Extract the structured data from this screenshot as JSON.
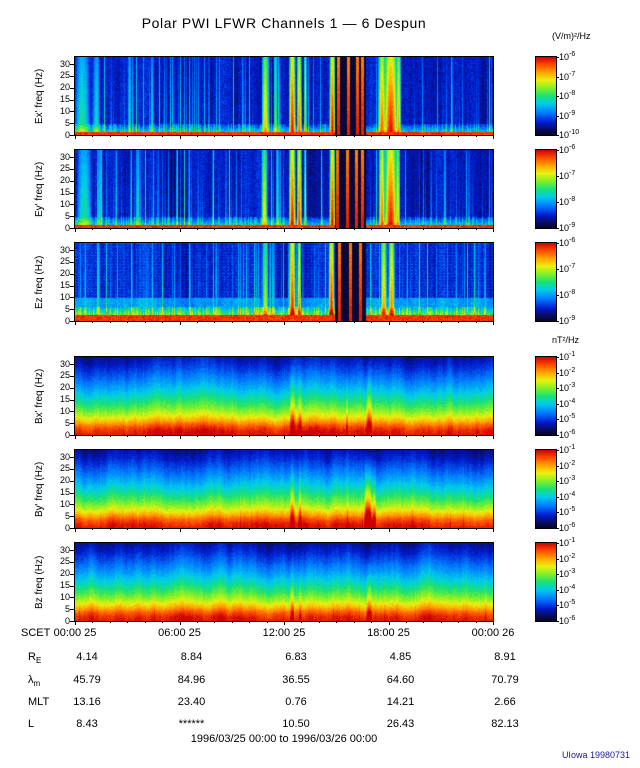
{
  "title": "Polar PWI LFWR Channels 1 — 6 Despun",
  "units_top": "(V/m)²/Hz",
  "units_bottom": "nT²/Hz",
  "footer": "1996/03/25 00:00 to 1996/03/26 00:00",
  "credit": "UIowa 19980731",
  "time_axis": {
    "prefix": "SCET",
    "tick_hours": [
      0,
      6,
      12,
      18,
      24
    ],
    "tick_labels": [
      "00:00 25",
      "06:00 25",
      "12:00 25",
      "18:00 25",
      "00:00 26"
    ]
  },
  "param_rows": [
    {
      "label": "R",
      "sub": "E",
      "values": [
        "4.14",
        "8.84",
        "6.83",
        "4.85",
        "8.91"
      ]
    },
    {
      "label": "λ",
      "sub": "m",
      "values": [
        "45.79",
        "84.96",
        "36.55",
        "64.60",
        "70.79"
      ]
    },
    {
      "label": "MLT",
      "sub": "",
      "values": [
        "13.16",
        "23.40",
        "0.76",
        "14.21",
        "2.66"
      ]
    },
    {
      "label": "L",
      "sub": "",
      "values": [
        "8.43",
        "******",
        "10.50",
        "26.43",
        "82.13"
      ]
    }
  ],
  "chart_data": {
    "type": "heatmap",
    "title": "Polar PWI LFWR Channels 1 — 6 Despun",
    "x": {
      "label": "SCET",
      "start": "1996/03/25 00:00",
      "end": "1996/03/26 00:00",
      "range_hours": [
        0,
        24
      ],
      "tick_labels": [
        "00:00 25",
        "06:00 25",
        "12:00 25",
        "18:00 25",
        "00:00 26"
      ]
    },
    "y": {
      "label": "freq (Hz)",
      "range": [
        0,
        30
      ],
      "ticks": [
        0,
        5,
        10,
        15,
        20,
        25,
        30
      ]
    },
    "colorbar_base": "10",
    "legend_position": "right",
    "panels": [
      {
        "id": "Ex",
        "ylabel": "Ex' freq (Hz)",
        "units": "(V/m)²/Hz",
        "kind": "E",
        "seed": 11,
        "colorbar_exponents": [
          "-6",
          "-7",
          "-8",
          "-9",
          "-10"
        ],
        "events": [
          {
            "t": 0.4,
            "w": 0.5,
            "s": 0.5
          },
          {
            "t": 1.2,
            "w": 0.25,
            "s": 0.45
          },
          {
            "t": 3.1,
            "w": 0.1,
            "s": 0.5
          },
          {
            "t": 4.4,
            "w": 0.12,
            "s": 0.45
          },
          {
            "t": 10.9,
            "w": 0.22,
            "s": 0.8
          },
          {
            "t": 11.5,
            "w": 0.12,
            "s": 0.6
          },
          {
            "t": 12.45,
            "w": 0.2,
            "s": 1.0
          },
          {
            "t": 12.85,
            "w": 0.15,
            "s": 0.9
          },
          {
            "t": 13.2,
            "w": 0.08,
            "s": 0.85
          },
          {
            "t": 14.75,
            "w": 0.18,
            "s": 1.0
          },
          {
            "t": 17.6,
            "w": 0.25,
            "s": 0.9
          },
          {
            "t": 18.1,
            "w": 0.45,
            "s": 1.0
          },
          {
            "t": 18.55,
            "w": 0.15,
            "s": 0.85
          },
          {
            "t": 21.6,
            "w": 0.08,
            "s": 0.45
          }
        ],
        "gap": {
          "t0": 14.95,
          "t1": 16.6,
          "spikes": [
            15.1,
            15.65,
            16.2,
            16.5
          ]
        }
      },
      {
        "id": "Ey",
        "ylabel": "Ey' freq (Hz)",
        "units": "(V/m)²/Hz",
        "kind": "E",
        "seed": 23,
        "colorbar_exponents": [
          "-6",
          "-7",
          "-8",
          "-9"
        ],
        "events": [
          {
            "t": 0.5,
            "w": 0.5,
            "s": 0.5
          },
          {
            "t": 1.4,
            "w": 0.2,
            "s": 0.45
          },
          {
            "t": 3.6,
            "w": 0.1,
            "s": 0.5
          },
          {
            "t": 10.85,
            "w": 0.2,
            "s": 0.75
          },
          {
            "t": 11.6,
            "w": 0.1,
            "s": 0.55
          },
          {
            "t": 12.45,
            "w": 0.2,
            "s": 1.0
          },
          {
            "t": 12.85,
            "w": 0.15,
            "s": 0.95
          },
          {
            "t": 13.2,
            "w": 0.07,
            "s": 0.8
          },
          {
            "t": 14.75,
            "w": 0.18,
            "s": 1.0
          },
          {
            "t": 17.6,
            "w": 0.2,
            "s": 0.9
          },
          {
            "t": 18.1,
            "w": 0.4,
            "s": 1.0
          },
          {
            "t": 18.5,
            "w": 0.15,
            "s": 0.8
          },
          {
            "t": 21.2,
            "w": 0.08,
            "s": 0.4
          }
        ],
        "gap": {
          "t0": 14.95,
          "t1": 16.6,
          "spikes": [
            15.05,
            15.6,
            16.15,
            16.45
          ]
        }
      },
      {
        "id": "Ez",
        "ylabel": "Ez freq (Hz)",
        "units": "(V/m)²/Hz",
        "kind": "E3",
        "seed": 37,
        "colorbar_exponents": [
          "-6",
          "-7",
          "-8",
          "-9"
        ],
        "events": [
          {
            "t": 10.9,
            "w": 0.2,
            "s": 0.7
          },
          {
            "t": 12.45,
            "w": 0.2,
            "s": 1.0
          },
          {
            "t": 12.85,
            "w": 0.12,
            "s": 0.9
          },
          {
            "t": 14.7,
            "w": 0.18,
            "s": 1.0
          },
          {
            "t": 17.7,
            "w": 0.2,
            "s": 0.85
          },
          {
            "t": 18.15,
            "w": 0.2,
            "s": 0.9
          }
        ],
        "gap": {
          "t0": 14.95,
          "t1": 16.6,
          "spikes": [
            15.15,
            15.8,
            16.35
          ]
        }
      },
      {
        "id": "Bx",
        "ylabel": "Bx' freq (Hz)",
        "units": "nT²/Hz",
        "kind": "B",
        "seed": 41,
        "colorbar_exponents": [
          "-1",
          "-2",
          "-3",
          "-4",
          "-5",
          "-6"
        ],
        "events": [
          {
            "t": 12.45,
            "w": 0.15,
            "s": 0.45
          },
          {
            "t": 12.9,
            "w": 0.1,
            "s": 0.35
          },
          {
            "t": 15.6,
            "w": 0.07,
            "s": 0.3
          },
          {
            "t": 16.85,
            "w": 0.18,
            "s": 0.5
          }
        ]
      },
      {
        "id": "By",
        "ylabel": "By' freq (Hz)",
        "units": "nT²/Hz",
        "kind": "B",
        "seed": 53,
        "colorbar_exponents": [
          "-1",
          "-2",
          "-3",
          "-4",
          "-5",
          "-6"
        ],
        "events": [
          {
            "t": 12.45,
            "w": 0.15,
            "s": 0.5
          },
          {
            "t": 12.9,
            "w": 0.1,
            "s": 0.4
          },
          {
            "t": 16.8,
            "w": 0.22,
            "s": 0.85
          },
          {
            "t": 17.15,
            "w": 0.12,
            "s": 0.5
          }
        ]
      },
      {
        "id": "Bz",
        "ylabel": "Bz freq (Hz)",
        "units": "nT²/Hz",
        "kind": "B",
        "seed": 67,
        "colorbar_exponents": [
          "-1",
          "-2",
          "-3",
          "-4",
          "-5",
          "-6"
        ],
        "events": [
          {
            "t": 12.45,
            "w": 0.12,
            "s": 0.4
          },
          {
            "t": 12.9,
            "w": 0.08,
            "s": 0.3
          },
          {
            "t": 16.85,
            "w": 0.16,
            "s": 0.45
          }
        ]
      }
    ]
  }
}
